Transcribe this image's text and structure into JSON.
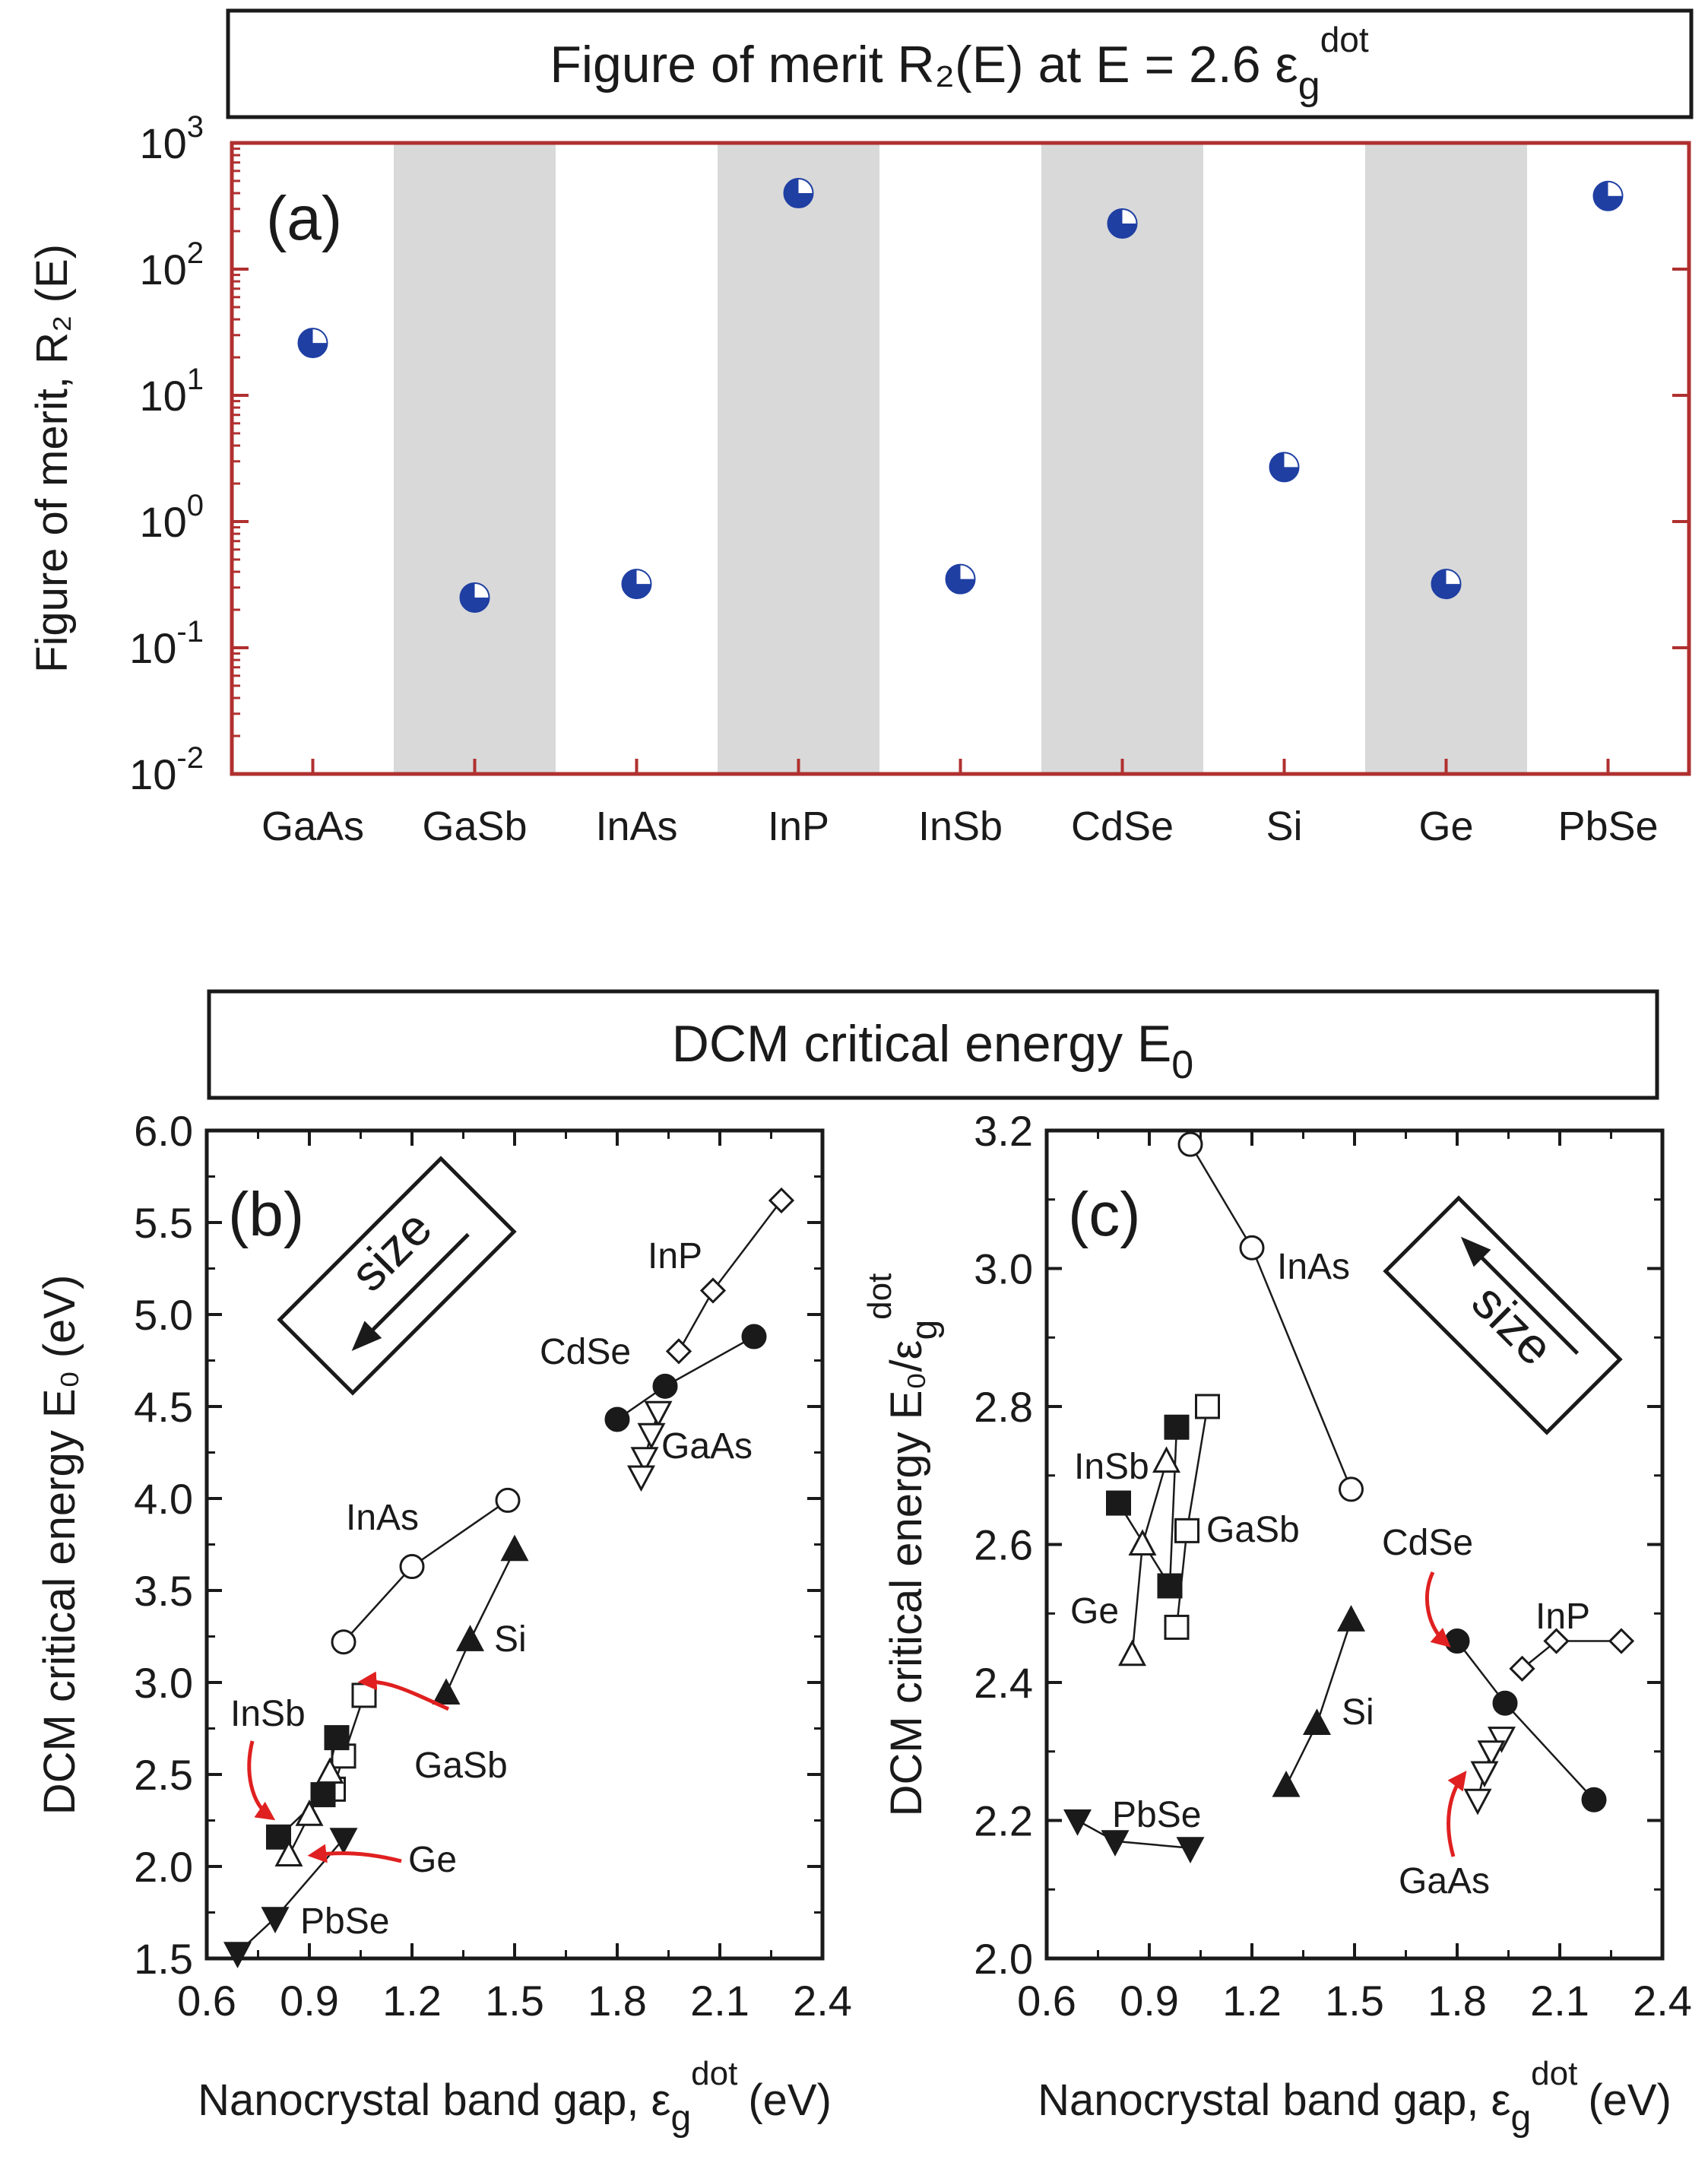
{
  "panel_a": {
    "title": "Figure of merit R₂(E) at E = 2.6 ε",
    "title_sub": "g",
    "title_sup": "dot",
    "panel_label": "(a)",
    "ylabel": "Figure of merit, R₂ (E)",
    "ytick_mantissa": "10",
    "ytick_exponents": [
      "-2",
      "-1",
      "0",
      "1",
      "2",
      "3"
    ]
  },
  "header_bc": {
    "title": "DCM critical energy E",
    "title_sub": "0"
  },
  "panel_b": {
    "panel_label": "(b)",
    "ylabel": "DCM critical energy E₀ (eV)",
    "xlabel": "Nanocrystal band gap, ε",
    "xlabel_sub": "g",
    "xlabel_sup": "dot",
    "xlabel_unit": "(eV)",
    "size_label": "size",
    "xticks": [
      "0.6",
      "0.9",
      "1.2",
      "1.5",
      "1.8",
      "2.1",
      "2.4"
    ],
    "yticks": [
      "1.5",
      "2.0",
      "2.5",
      "3.0",
      "3.5",
      "4.0",
      "4.5",
      "5.0",
      "5.5",
      "6.0"
    ]
  },
  "panel_c": {
    "panel_label": "(c)",
    "ylabel": "DCM critical energy E₀/ε",
    "ylabel_sub": "g",
    "ylabel_sup": "dot",
    "xlabel": "Nanocrystal band gap, ε",
    "xlabel_sub": "g",
    "xlabel_sup": "dot",
    "xlabel_unit": "(eV)",
    "size_label": "size",
    "xticks": [
      "0.6",
      "0.9",
      "1.2",
      "1.5",
      "1.8",
      "2.1",
      "2.4"
    ],
    "yticks": [
      "2.0",
      "2.2",
      "2.4",
      "2.6",
      "2.8",
      "3.0",
      "3.2"
    ]
  },
  "colors": {
    "marker_blue": "#1f3fa3",
    "shade": "#d9d9d9",
    "frame_red": "#b03030",
    "arrow_red": "#e02020",
    "ink": "#1a1a1a"
  },
  "chart_data": [
    {
      "id": "a",
      "type": "scatter",
      "title": "Figure of merit R2(E) at E = 2.6 eps_g^dot",
      "ylabel": "Figure of merit, R2 (E)",
      "yscale": "log",
      "ylim": [
        0.01,
        1000
      ],
      "categories": [
        "GaAs",
        "GaSb",
        "InAs",
        "InP",
        "InSb",
        "CdSe",
        "Si",
        "Ge",
        "PbSe"
      ],
      "values": [
        26,
        0.25,
        0.32,
        400,
        0.35,
        230,
        2.7,
        0.32,
        380
      ],
      "shaded_categories": [
        "GaSb",
        "InP",
        "CdSe",
        "Ge"
      ]
    },
    {
      "id": "b",
      "type": "line",
      "xlabel": "Nanocrystal band gap, eps_g^dot (eV)",
      "ylabel": "DCM critical energy E0 (eV)",
      "xlim": [
        0.6,
        2.4
      ],
      "ylim": [
        1.5,
        6.0
      ],
      "series": [
        {
          "name": "InP",
          "marker": "diamond-open",
          "x": [
            1.98,
            2.08,
            2.28
          ],
          "y": [
            4.8,
            5.13,
            5.62
          ]
        },
        {
          "name": "CdSe",
          "marker": "circle-filled",
          "x": [
            1.8,
            1.94,
            2.2
          ],
          "y": [
            4.43,
            4.61,
            4.88
          ]
        },
        {
          "name": "GaAs",
          "marker": "triangle-down-open",
          "x": [
            1.92,
            1.9,
            1.88,
            1.87
          ],
          "y": [
            4.47,
            4.35,
            4.22,
            4.12
          ]
        },
        {
          "name": "InAs",
          "marker": "circle-open",
          "x": [
            1.0,
            1.2,
            1.48
          ],
          "y": [
            3.22,
            3.63,
            3.99
          ]
        },
        {
          "name": "Si",
          "marker": "triangle-up-filled",
          "x": [
            1.3,
            1.37,
            1.5
          ],
          "y": [
            2.94,
            3.23,
            3.72
          ]
        },
        {
          "name": "GaSb",
          "marker": "square-open",
          "x": [
            0.97,
            1.0,
            1.06
          ],
          "y": [
            2.42,
            2.6,
            2.93
          ]
        },
        {
          "name": "InSb",
          "marker": "square-filled",
          "x": [
            0.81,
            0.94,
            0.98
          ],
          "y": [
            2.16,
            2.39,
            2.7
          ]
        },
        {
          "name": "Ge",
          "marker": "triangle-up-open",
          "x": [
            0.84,
            0.9,
            0.96
          ],
          "y": [
            2.06,
            2.28,
            2.51
          ]
        },
        {
          "name": "PbSe",
          "marker": "triangle-down-filled",
          "x": [
            0.69,
            0.8,
            1.0
          ],
          "y": [
            1.53,
            1.72,
            2.15
          ]
        }
      ],
      "annotations": [
        "size (arrow toward smaller band gap)"
      ]
    },
    {
      "id": "c",
      "type": "line",
      "xlabel": "Nanocrystal band gap, eps_g^dot (eV)",
      "ylabel": "DCM critical energy E0/eps_g^dot",
      "xlim": [
        0.6,
        2.4
      ],
      "ylim": [
        2.0,
        3.2
      ],
      "series": [
        {
          "name": "InAs",
          "marker": "circle-open",
          "x": [
            1.02,
            1.2,
            1.49
          ],
          "y": [
            3.18,
            3.03,
            2.68
          ]
        },
        {
          "name": "GaSb",
          "marker": "square-open",
          "x": [
            0.98,
            1.01,
            1.07
          ],
          "y": [
            2.48,
            2.62,
            2.8
          ]
        },
        {
          "name": "InSb",
          "marker": "square-filled",
          "x": [
            0.81,
            0.96,
            0.98
          ],
          "y": [
            2.66,
            2.54,
            2.77
          ]
        },
        {
          "name": "Ge",
          "marker": "triangle-up-open",
          "x": [
            0.85,
            0.88,
            0.95
          ],
          "y": [
            2.44,
            2.6,
            2.72
          ]
        },
        {
          "name": "CdSe",
          "marker": "circle-filled",
          "x": [
            1.8,
            1.94,
            2.2
          ],
          "y": [
            2.46,
            2.37,
            2.23
          ]
        },
        {
          "name": "InP",
          "marker": "diamond-open",
          "x": [
            1.99,
            2.09,
            2.28
          ],
          "y": [
            2.42,
            2.46,
            2.46
          ]
        },
        {
          "name": "GaAs",
          "marker": "triangle-down-open",
          "x": [
            1.93,
            1.9,
            1.88,
            1.86
          ],
          "y": [
            2.32,
            2.3,
            2.27,
            2.23
          ]
        },
        {
          "name": "Si",
          "marker": "triangle-up-filled",
          "x": [
            1.3,
            1.39,
            1.49
          ],
          "y": [
            2.25,
            2.34,
            2.49
          ]
        },
        {
          "name": "PbSe",
          "marker": "triangle-down-filled",
          "x": [
            0.69,
            0.8,
            1.02
          ],
          "y": [
            2.2,
            2.17,
            2.16
          ]
        }
      ],
      "annotations": [
        "size (arrow toward smaller band gap)"
      ]
    }
  ]
}
